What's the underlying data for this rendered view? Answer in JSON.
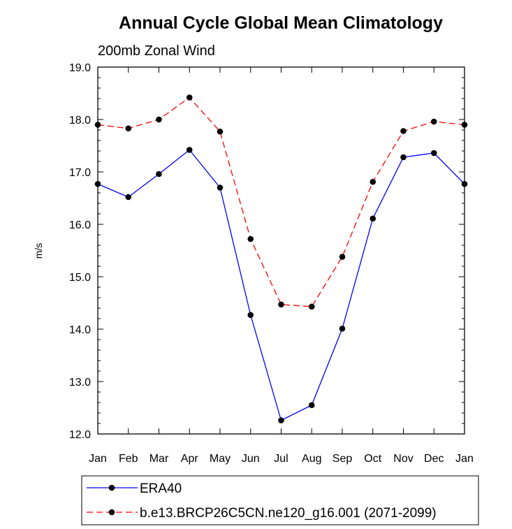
{
  "chart_data": {
    "type": "line",
    "title": "Annual Cycle Global Mean Climatology",
    "subtitle": "200mb Zonal Wind",
    "xlabel": "",
    "ylabel": "m/s",
    "categories": [
      "Jan",
      "Feb",
      "Mar",
      "Apr",
      "May",
      "Jun",
      "Jul",
      "Aug",
      "Sep",
      "Oct",
      "Nov",
      "Dec",
      "Jan"
    ],
    "ylim": [
      12.0,
      19.0
    ],
    "yticks": [
      "12.0",
      "13.0",
      "14.0",
      "15.0",
      "16.0",
      "17.0",
      "18.0",
      "19.0"
    ],
    "grid": false,
    "legend_position": "bottom",
    "series": [
      {
        "name": "ERA40",
        "color": "#0000ff",
        "line_style": "solid",
        "marker": "filled-circle",
        "values": [
          16.77,
          16.52,
          16.96,
          17.42,
          16.7,
          14.27,
          12.26,
          12.55,
          14.01,
          16.11,
          17.28,
          17.36,
          16.77
        ]
      },
      {
        "name": "b.e13.BRCP26C5CN.ne120_g16.001 (2071-2099)",
        "color": "#ff0000",
        "line_style": "dashed",
        "marker": "filled-circle",
        "values": [
          17.9,
          17.83,
          18.0,
          18.42,
          17.77,
          15.72,
          14.47,
          14.43,
          15.38,
          16.81,
          17.78,
          17.96,
          17.9
        ]
      }
    ]
  }
}
